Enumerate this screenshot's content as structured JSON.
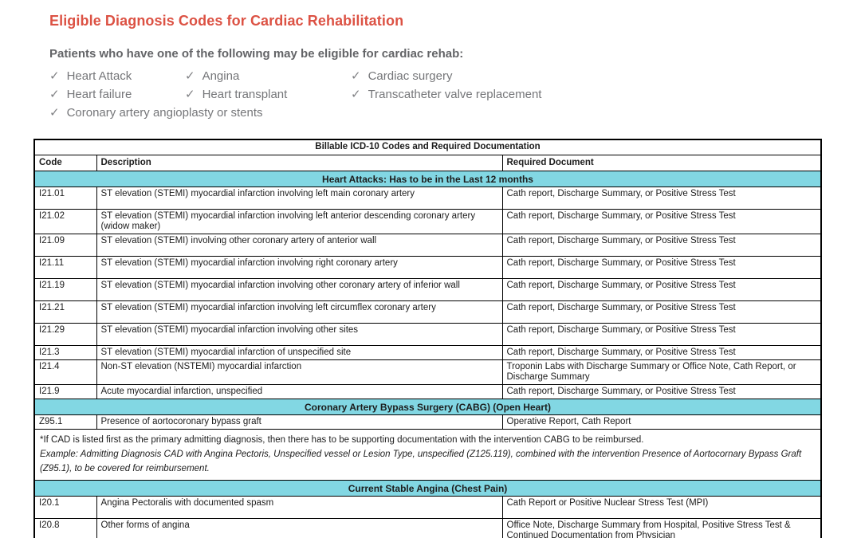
{
  "page": {
    "title": "Eligible Diagnosis Codes for Cardiac Rehabilitation",
    "intro": "Patients who have one of the following may be eligible for cardiac rehab:",
    "check_glyph": "✓",
    "checklist_columns": [
      [
        "Heart Attack",
        "Heart failure",
        "Coronary artery angioplasty or stents"
      ],
      [
        "Angina",
        "Heart transplant"
      ],
      [
        "Cardiac surgery",
        "Transcatheter valve replacement"
      ]
    ]
  },
  "colors": {
    "title_red": "#dc5244",
    "section_cyan": "#82d7e3",
    "intro_gray": "#636467",
    "checklist_gray": "#757679",
    "border_black": "#000000"
  },
  "table": {
    "title": "Billable ICD-10 Codes and Required Documentation",
    "columns": [
      "Code",
      "Description",
      "Required Document"
    ],
    "rows": [
      {
        "type": "section",
        "label": "Heart Attacks: Has to be in the Last 12 months"
      },
      {
        "type": "data",
        "code": "I21.01",
        "description": "ST elevation (STEMI) myocardial infarction involving left main coronary artery",
        "doc": "Cath report, Discharge Summary, or Positive Stress Test"
      },
      {
        "type": "data",
        "code": "I21.02",
        "description": "ST elevation (STEMI) myocardial infarction involving left anterior descending coronary artery (widow maker)",
        "doc": "Cath report, Discharge Summary, or Positive Stress Test"
      },
      {
        "type": "data",
        "code": "I21.09",
        "description": "ST elevation (STEMI) involving other coronary artery of anterior wall",
        "doc": "Cath report, Discharge Summary, or Positive Stress Test"
      },
      {
        "type": "data",
        "code": "I21.11",
        "description": "ST elevation (STEMI) myocardial infarction involving right coronary artery",
        "doc": "Cath report, Discharge Summary, or Positive Stress Test"
      },
      {
        "type": "data",
        "code": "I21.19",
        "description": "ST elevation (STEMI) myocardial infarction involving other coronary artery of inferior wall",
        "doc": "Cath report, Discharge Summary, or Positive Stress Test"
      },
      {
        "type": "data",
        "code": "I21.21",
        "description": "ST elevation (STEMI) myocardial infarction involving left circumflex coronary artery",
        "doc": "Cath report, Discharge Summary, or Positive Stress Test"
      },
      {
        "type": "data",
        "code": "I21.29",
        "description": "ST elevation (STEMI) myocardial infarction involving other sites",
        "doc": "Cath report, Discharge Summary, or Positive Stress Test"
      },
      {
        "type": "data",
        "tight": true,
        "code": "I21.3",
        "description": "ST elevation (STEMI) myocardial infarction of unspecified site",
        "doc": "Cath report, Discharge Summary, or Positive Stress Test"
      },
      {
        "type": "data",
        "tight": true,
        "code": "I21.4",
        "description": "Non-ST elevation (NSTEMI) myocardial infarction",
        "doc": "Troponin Labs with Discharge Summary or Office Note, Cath Report, or Discharge Summary"
      },
      {
        "type": "data",
        "tight": true,
        "code": "I21.9",
        "description": "Acute myocardial infarction, unspecified",
        "doc": "Cath report, Discharge Summary, or Positive Stress Test"
      },
      {
        "type": "section",
        "label": "Coronary Artery Bypass Surgery (CABG) (Open Heart)"
      },
      {
        "type": "data",
        "tight": true,
        "code": "Z95.1",
        "description": "Presence of aortocoronary bypass graft",
        "doc": "Operative Report, Cath Report"
      },
      {
        "type": "note",
        "lines": [
          "*If CAD is listed first as the primary admitting diagnosis, then there has to be supporting documentation with the intervention CABG to be reimbursed.",
          "Example: Admitting Diagnosis CAD with Angina Pectoris, Unspecified vessel or Lesion Type, unspecified (Z125.119), combined with the intervention Presence of Aortocornary Bypass Graft (Z95.1), to be covered for reimbursement."
        ]
      },
      {
        "type": "section",
        "label": "Current Stable Angina (Chest Pain)"
      },
      {
        "type": "data",
        "code": "I20.1",
        "description": "Angina Pectoralis with documented spasm",
        "doc": "Cath Report or Positive Nuclear Stress Test (MPI)"
      },
      {
        "type": "data",
        "code": "I20.8",
        "description": "Other forms of angina",
        "doc": "Office Note, Discharge Summary from Hospital, Positive Stress Test & Continued Documentation from Physician"
      }
    ]
  }
}
